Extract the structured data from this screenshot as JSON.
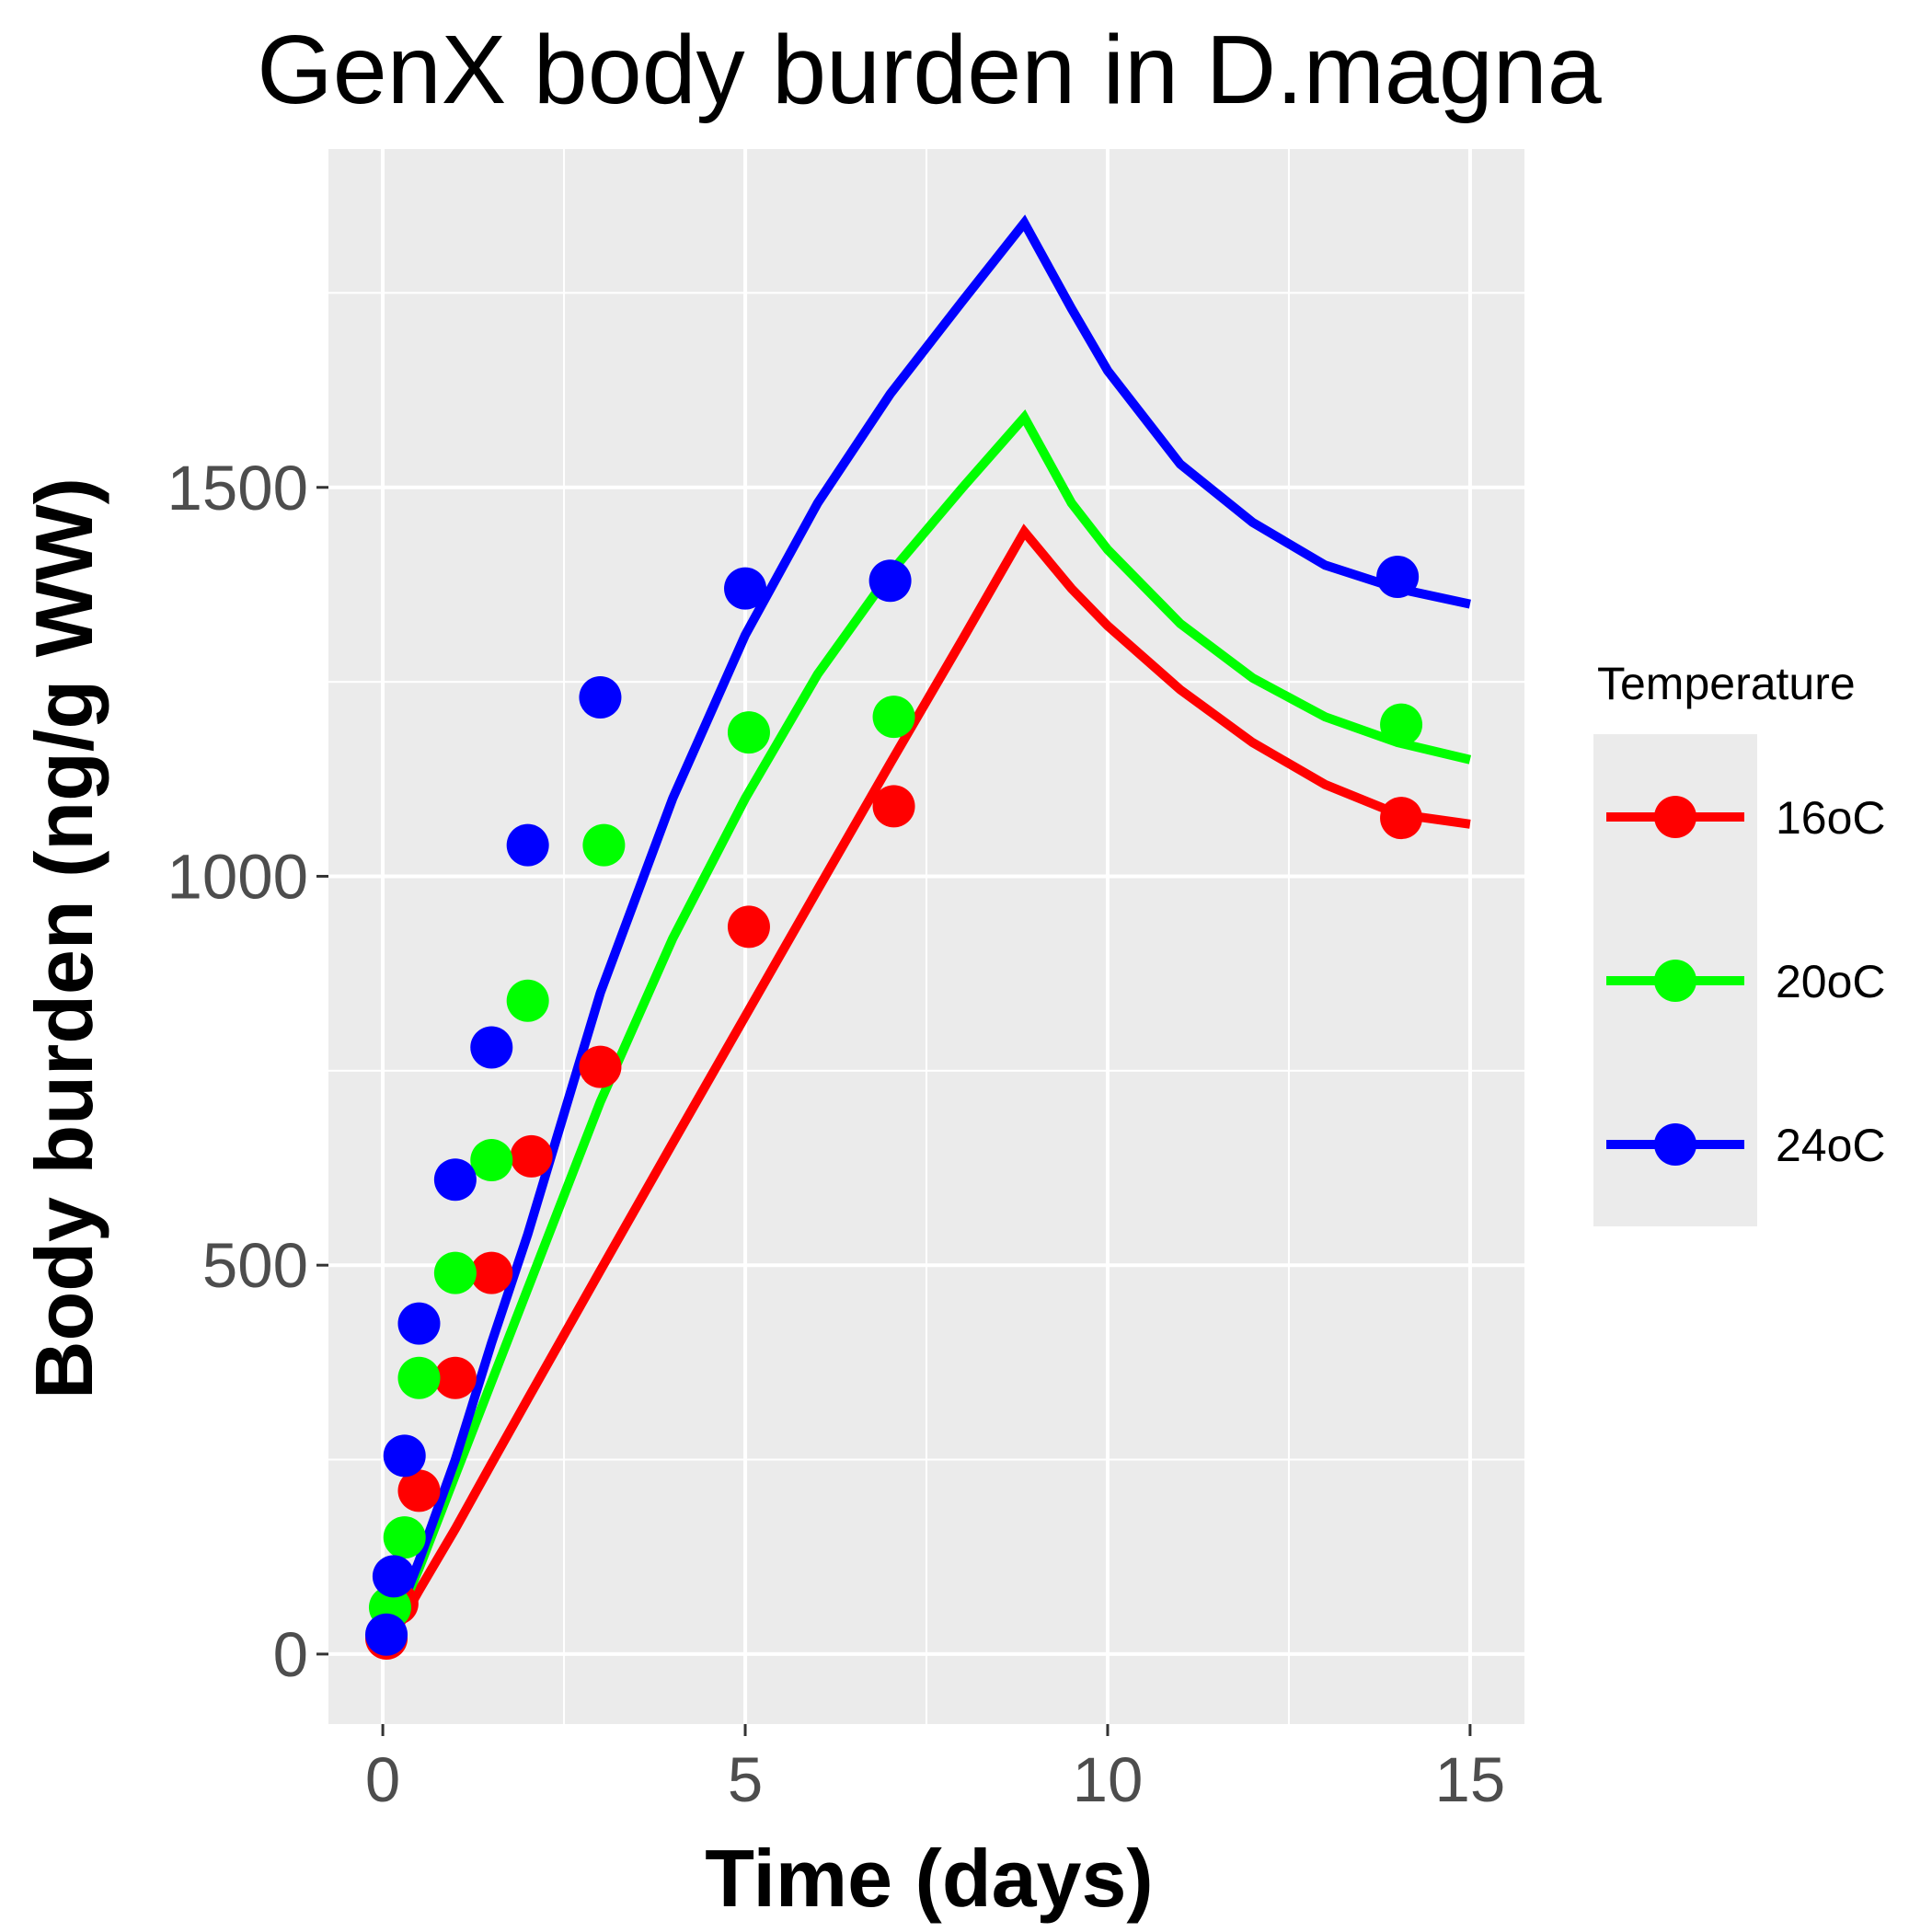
{
  "chart_data": {
    "type": "scatter",
    "title": "GenX body burden in D.magna",
    "xlabel": "Time (days)",
    "ylabel": "Body burden (ng/g WW)",
    "xlim": [
      -0.75,
      15.75
    ],
    "ylim": [
      -90,
      1935
    ],
    "x_ticks": [
      0,
      5,
      10,
      15
    ],
    "y_ticks": [
      0,
      500,
      1000,
      1500
    ],
    "grid": true,
    "legend": {
      "title": "Temperature",
      "placement": "right"
    },
    "series": [
      {
        "name": "16oC",
        "color": "#ff0000",
        "points": [
          {
            "x": 0.05,
            "y": 20
          },
          {
            "x": 0.2,
            "y": 65
          },
          {
            "x": 0.5,
            "y": 210
          },
          {
            "x": 1.0,
            "y": 355
          },
          {
            "x": 1.5,
            "y": 490
          },
          {
            "x": 2.05,
            "y": 640
          },
          {
            "x": 3.0,
            "y": 755
          },
          {
            "x": 5.05,
            "y": 935
          },
          {
            "x": 7.05,
            "y": 1090
          },
          {
            "x": 14.05,
            "y": 1075
          }
        ],
        "model_curve": [
          {
            "x": 0,
            "y": 0
          },
          {
            "x": 0.5,
            "y": 82
          },
          {
            "x": 1,
            "y": 161
          },
          {
            "x": 1.5,
            "y": 245
          },
          {
            "x": 2,
            "y": 328
          },
          {
            "x": 3,
            "y": 493
          },
          {
            "x": 4,
            "y": 657
          },
          {
            "x": 5,
            "y": 820
          },
          {
            "x": 6,
            "y": 983
          },
          {
            "x": 7,
            "y": 1145
          },
          {
            "x": 8,
            "y": 1305
          },
          {
            "x": 8.85,
            "y": 1443
          },
          {
            "x": 9.5,
            "y": 1370
          },
          {
            "x": 10,
            "y": 1322
          },
          {
            "x": 11,
            "y": 1240
          },
          {
            "x": 12,
            "y": 1172
          },
          {
            "x": 13,
            "y": 1118
          },
          {
            "x": 14,
            "y": 1080
          },
          {
            "x": 15,
            "y": 1067
          }
        ]
      },
      {
        "name": "20oC",
        "color": "#00ff00",
        "points": [
          {
            "x": 0.1,
            "y": 60
          },
          {
            "x": 0.3,
            "y": 150
          },
          {
            "x": 0.5,
            "y": 355
          },
          {
            "x": 1.0,
            "y": 490
          },
          {
            "x": 1.5,
            "y": 635
          },
          {
            "x": 2.0,
            "y": 840
          },
          {
            "x": 3.05,
            "y": 1040
          },
          {
            "x": 5.05,
            "y": 1185
          },
          {
            "x": 7.05,
            "y": 1205
          },
          {
            "x": 14.05,
            "y": 1195
          }
        ],
        "model_curve": [
          {
            "x": 0,
            "y": 0
          },
          {
            "x": 0.5,
            "y": 110
          },
          {
            "x": 1,
            "y": 230
          },
          {
            "x": 1.5,
            "y": 350
          },
          {
            "x": 2,
            "y": 470
          },
          {
            "x": 3,
            "y": 710
          },
          {
            "x": 4,
            "y": 920
          },
          {
            "x": 5,
            "y": 1100
          },
          {
            "x": 6,
            "y": 1260
          },
          {
            "x": 7,
            "y": 1390
          },
          {
            "x": 8,
            "y": 1500
          },
          {
            "x": 8.85,
            "y": 1590
          },
          {
            "x": 9.5,
            "y": 1480
          },
          {
            "x": 10,
            "y": 1420
          },
          {
            "x": 11,
            "y": 1325
          },
          {
            "x": 12,
            "y": 1255
          },
          {
            "x": 13,
            "y": 1205
          },
          {
            "x": 14,
            "y": 1172
          },
          {
            "x": 15,
            "y": 1150
          }
        ]
      },
      {
        "name": "24oC",
        "color": "#0000ff",
        "points": [
          {
            "x": 0.05,
            "y": 25
          },
          {
            "x": 0.15,
            "y": 100
          },
          {
            "x": 0.3,
            "y": 255
          },
          {
            "x": 0.5,
            "y": 425
          },
          {
            "x": 1.0,
            "y": 610
          },
          {
            "x": 1.5,
            "y": 780
          },
          {
            "x": 2.0,
            "y": 1040
          },
          {
            "x": 3.0,
            "y": 1230
          },
          {
            "x": 5.0,
            "y": 1370
          },
          {
            "x": 7.0,
            "y": 1380
          },
          {
            "x": 14.0,
            "y": 1385
          }
        ],
        "model_curve": [
          {
            "x": 0,
            "y": 0
          },
          {
            "x": 0.5,
            "y": 120
          },
          {
            "x": 1,
            "y": 250
          },
          {
            "x": 1.5,
            "y": 400
          },
          {
            "x": 2,
            "y": 540
          },
          {
            "x": 3,
            "y": 850
          },
          {
            "x": 4,
            "y": 1100
          },
          {
            "x": 5,
            "y": 1310
          },
          {
            "x": 6,
            "y": 1480
          },
          {
            "x": 7,
            "y": 1620
          },
          {
            "x": 8,
            "y": 1740
          },
          {
            "x": 8.85,
            "y": 1840
          },
          {
            "x": 9.5,
            "y": 1730
          },
          {
            "x": 10,
            "y": 1650
          },
          {
            "x": 11,
            "y": 1530
          },
          {
            "x": 12,
            "y": 1455
          },
          {
            "x": 13,
            "y": 1400
          },
          {
            "x": 14,
            "y": 1370
          },
          {
            "x": 15,
            "y": 1350
          }
        ]
      }
    ]
  }
}
